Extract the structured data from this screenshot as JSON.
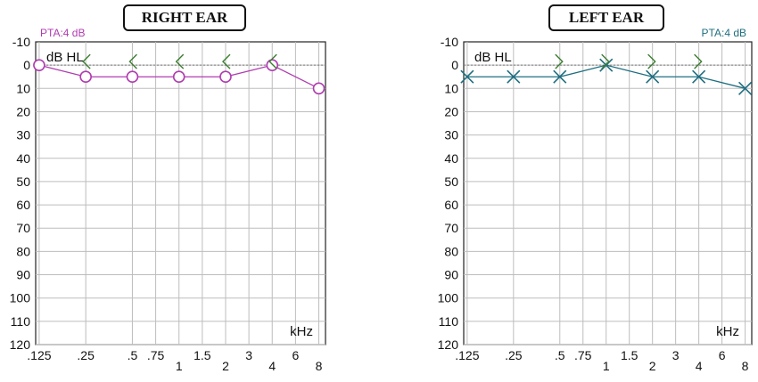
{
  "chart_data": [
    {
      "type": "line",
      "title": "RIGHT EAR",
      "annotation": "PTA:4 dB",
      "ylabel": "dB HL",
      "xlabel": "kHz",
      "y_ticks": [
        "-10",
        "0",
        "10",
        "20",
        "30",
        "40",
        "50",
        "60",
        "70",
        "80",
        "90",
        "100",
        "110",
        "120"
      ],
      "ylim": [
        -10,
        120
      ],
      "y_inverted": true,
      "x_ticks": [
        ".125",
        ".25",
        ".5",
        ".75",
        "1",
        "1.5",
        "2",
        "3",
        "4",
        "6",
        "8"
      ],
      "grid": true,
      "series": [
        {
          "marker": "circle",
          "x": [
            0.125,
            0.25,
            0.5,
            1,
            2,
            4,
            8
          ],
          "y": [
            0,
            5,
            5,
            5,
            5,
            0,
            10
          ]
        },
        {
          "marker": "bracket-open-left",
          "x": [
            0.25,
            0.5,
            1,
            2,
            4
          ],
          "y": [
            0,
            0,
            0,
            0,
            0
          ]
        }
      ],
      "color": "#b03cb0",
      "bracket_color": "#3a7d2e"
    },
    {
      "type": "line",
      "title": "LEFT EAR",
      "annotation": "PTA:4 dB",
      "ylabel": "dB HL",
      "xlabel": "kHz",
      "y_ticks": [
        "-10",
        "0",
        "10",
        "20",
        "30",
        "40",
        "50",
        "60",
        "70",
        "80",
        "90",
        "100",
        "110",
        "120"
      ],
      "ylim": [
        -10,
        120
      ],
      "y_inverted": true,
      "x_ticks": [
        ".125",
        ".25",
        ".5",
        ".75",
        "1",
        "1.5",
        "2",
        "3",
        "4",
        "6",
        "8"
      ],
      "grid": true,
      "series": [
        {
          "marker": "x",
          "x": [
            0.125,
            0.25,
            0.5,
            1,
            2,
            4,
            8
          ],
          "y": [
            5,
            5,
            5,
            0,
            5,
            5,
            10
          ]
        },
        {
          "marker": "bracket-open-right",
          "x": [
            0.5,
            1,
            2,
            4
          ],
          "y": [
            0,
            0,
            0,
            0
          ]
        }
      ],
      "color": "#1e6e80",
      "bracket_color": "#3a7d2e"
    }
  ]
}
